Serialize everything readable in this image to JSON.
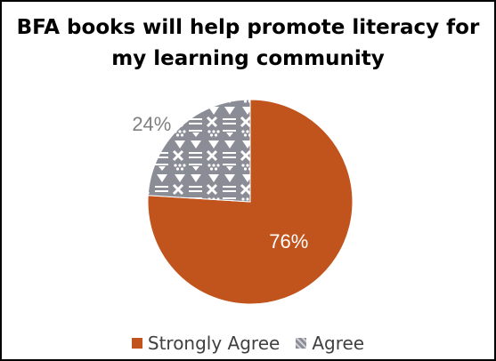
{
  "colors": {
    "strongly_agree": "#c0541c",
    "agree_background": "#8a8c96",
    "agree_pattern": "#ffffff",
    "label_light": "#ffffff",
    "label_dark": "#808080"
  },
  "chart_data": {
    "type": "pie",
    "title": [
      "BFA books will help promote literacy for",
      "my learning community"
    ],
    "slices": [
      {
        "name": "Strongly Agree",
        "value": 76,
        "label": "76%",
        "fill": "solid"
      },
      {
        "name": "Agree",
        "value": 24,
        "label": "24%",
        "fill": "pattern"
      }
    ],
    "start_angle_deg": 0,
    "direction": "clockwise",
    "legend_position": "bottom"
  }
}
